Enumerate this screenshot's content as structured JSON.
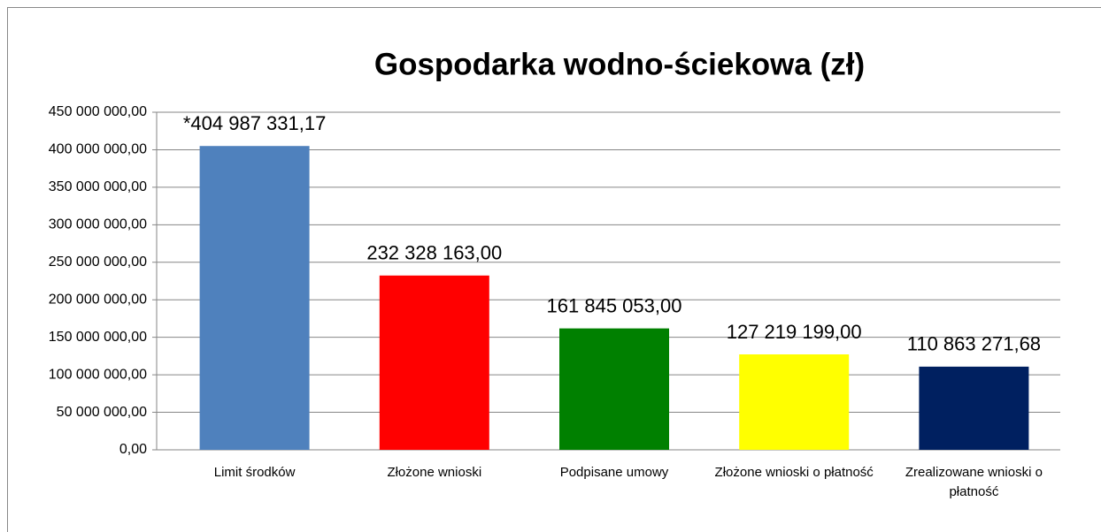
{
  "chart_data": {
    "type": "bar",
    "title": "Gospodarka wodno-ściekowa (zł)",
    "categories": [
      "Limit środków",
      "Złożone wnioski",
      "Podpisane umowy",
      "Złożone wnioski o płatność",
      "Zrealizowane wnioski o płatność"
    ],
    "values": [
      404987331.17,
      232328163,
      161845053,
      127219199,
      110863271.68
    ],
    "value_labels": [
      "*404 987 331,17",
      "232 328 163,00",
      "161 845 053,00",
      "127 219 199,00",
      "110 863 271,68"
    ],
    "colors": [
      "#4f81bd",
      "#ff0000",
      "#008000",
      "#ffff00",
      "#002060"
    ],
    "ylim": [
      0,
      450000000
    ],
    "yticks": [
      {
        "value": 0,
        "label": "0,00"
      },
      {
        "value": 50000000,
        "label": "50 000 000,00"
      },
      {
        "value": 100000000,
        "label": "100 000 000,00"
      },
      {
        "value": 150000000,
        "label": "150 000 000,00"
      },
      {
        "value": 200000000,
        "label": "200 000 000,00"
      },
      {
        "value": 250000000,
        "label": "250 000 000,00"
      },
      {
        "value": 300000000,
        "label": "300 000 000,00"
      },
      {
        "value": 350000000,
        "label": "350 000 000,00"
      },
      {
        "value": 400000000,
        "label": "400 000 000,00"
      },
      {
        "value": 450000000,
        "label": "450 000 000,00"
      }
    ],
    "grid": true
  }
}
